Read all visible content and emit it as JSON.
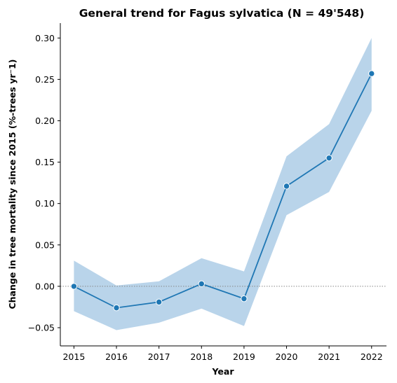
{
  "chart_data": {
    "type": "line",
    "title": "General trend for Fagus sylvatica  (N = 49'548)",
    "xlabel": "Year",
    "ylabel": "Change in tree mortality since 2015 (%-trees yr⁻1)",
    "x": [
      2015,
      2016,
      2017,
      2018,
      2019,
      2020,
      2021,
      2022
    ],
    "xlim": [
      2014.68,
      2022.35
    ],
    "ylim": [
      -0.072,
      0.318
    ],
    "x_ticks": [
      "2015",
      "2016",
      "2017",
      "2018",
      "2019",
      "2020",
      "2021",
      "2022"
    ],
    "y_ticks": [
      -0.05,
      0.0,
      0.05,
      0.1,
      0.15,
      0.2,
      0.25,
      0.3
    ],
    "y_tick_labels": [
      "−0.05",
      "0.00",
      "0.05",
      "0.10",
      "0.15",
      "0.20",
      "0.25",
      "0.30"
    ],
    "series": [
      {
        "values": [
          0.0,
          -0.026,
          -0.019,
          0.003,
          -0.015,
          0.121,
          0.155,
          0.257
        ],
        "ci_lower": [
          -0.03,
          -0.053,
          -0.044,
          -0.027,
          -0.048,
          0.086,
          0.114,
          0.212
        ],
        "ci_upper": [
          0.031,
          0.001,
          0.006,
          0.034,
          0.018,
          0.157,
          0.196,
          0.3
        ],
        "color": "#1f77b4",
        "band_color": "#b9d4ea"
      }
    ],
    "reference_line": {
      "y": 0.0,
      "style": "dotted",
      "color": "#888888"
    },
    "grid": false,
    "legend": "none"
  }
}
